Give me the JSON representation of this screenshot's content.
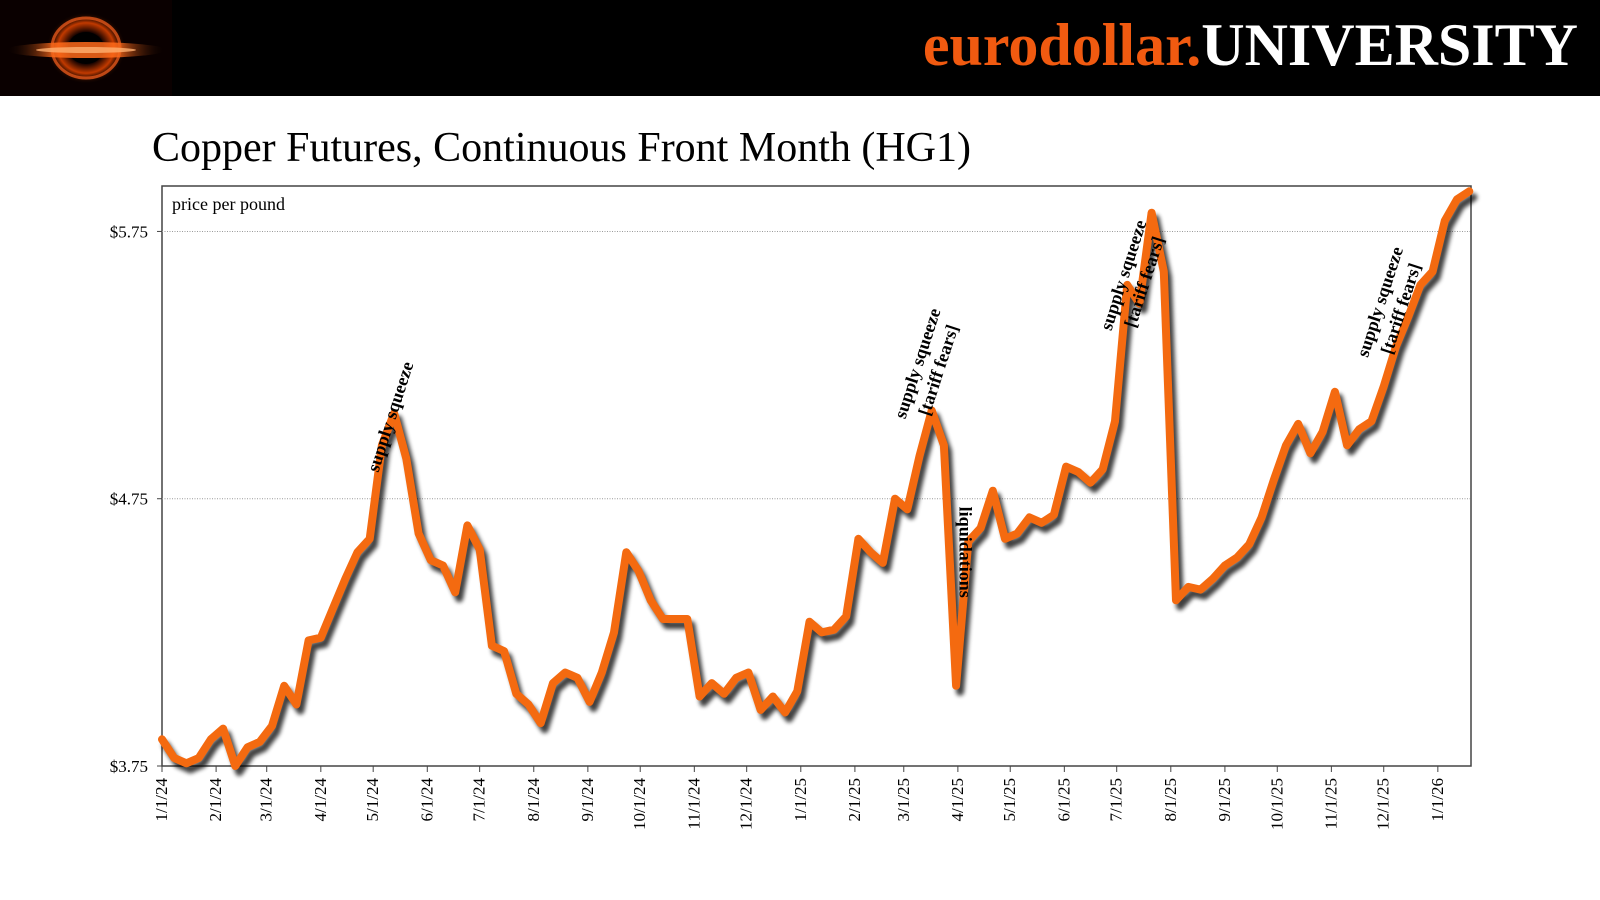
{
  "header": {
    "brand_part1": "eurodollar.",
    "brand_part2": "UNIVERSITY",
    "logo_icon": "eurodollar-university-logo",
    "colors": {
      "background": "#000000",
      "accent": "#f15a10",
      "brand_text": "#ffffff"
    }
  },
  "chart_data": {
    "type": "line",
    "title": "Copper Futures, Continuous Front Month (HG1)",
    "ylabel": "price per pound",
    "xlabel": "",
    "ylim": [
      3.75,
      5.92
    ],
    "yticks": [
      3.75,
      4.75,
      5.75
    ],
    "ytick_labels": [
      "$3.75",
      "$4.75",
      "$5.75"
    ],
    "xlim": [
      "2024-01-01",
      "2026-01-20"
    ],
    "xticks": [
      "2024-01-01",
      "2024-02-01",
      "2024-03-01",
      "2024-04-01",
      "2024-05-01",
      "2024-06-01",
      "2024-07-01",
      "2024-08-01",
      "2024-09-01",
      "2024-10-01",
      "2024-11-01",
      "2024-12-01",
      "2025-01-01",
      "2025-02-01",
      "2025-03-01",
      "2025-04-01",
      "2025-05-01",
      "2025-06-01",
      "2025-07-01",
      "2025-08-01",
      "2025-09-01",
      "2025-10-01",
      "2025-11-01",
      "2025-12-01",
      "2026-01-01"
    ],
    "xtick_labels": [
      "1/1/24",
      "2/1/24",
      "3/1/24",
      "4/1/24",
      "5/1/24",
      "6/1/24",
      "7/1/24",
      "8/1/24",
      "9/1/24",
      "10/1/24",
      "11/1/24",
      "12/1/24",
      "1/1/25",
      "2/1/25",
      "3/1/25",
      "4/1/25",
      "5/1/25",
      "6/1/25",
      "7/1/25",
      "8/1/25",
      "9/1/25",
      "10/1/25",
      "11/1/25",
      "12/1/25",
      "1/1/26"
    ],
    "grid": {
      "horizontal": true,
      "vertical": false
    },
    "line_color": "#f46a10",
    "series": [
      {
        "x": [
          "2024-01-01",
          "2024-01-08",
          "2024-01-15",
          "2024-01-22",
          "2024-01-29",
          "2024-02-05",
          "2024-02-12",
          "2024-02-19",
          "2024-02-26",
          "2024-03-04",
          "2024-03-11",
          "2024-03-18",
          "2024-03-25",
          "2024-04-01",
          "2024-04-08",
          "2024-04-15",
          "2024-04-22",
          "2024-04-29",
          "2024-05-06",
          "2024-05-13",
          "2024-05-20",
          "2024-05-27",
          "2024-06-03",
          "2024-06-10",
          "2024-06-17",
          "2024-06-24",
          "2024-07-01",
          "2024-07-08",
          "2024-07-15",
          "2024-07-22",
          "2024-07-29",
          "2024-08-05",
          "2024-08-12",
          "2024-08-19",
          "2024-08-26",
          "2024-09-02",
          "2024-09-09",
          "2024-09-16",
          "2024-09-23",
          "2024-09-30",
          "2024-10-07",
          "2024-10-14",
          "2024-10-21",
          "2024-10-28",
          "2024-11-04",
          "2024-11-11",
          "2024-11-18",
          "2024-11-25",
          "2024-12-02",
          "2024-12-09",
          "2024-12-16",
          "2024-12-23",
          "2024-12-30",
          "2025-01-06",
          "2025-01-13",
          "2025-01-20",
          "2025-01-27",
          "2025-02-03",
          "2025-02-10",
          "2025-02-17",
          "2025-02-24",
          "2025-03-03",
          "2025-03-10",
          "2025-03-17",
          "2025-03-24",
          "2025-03-31",
          "2025-04-07",
          "2025-04-14",
          "2025-04-21",
          "2025-04-28",
          "2025-05-05",
          "2025-05-12",
          "2025-05-19",
          "2025-05-26",
          "2025-06-02",
          "2025-06-09",
          "2025-06-16",
          "2025-06-23",
          "2025-06-30",
          "2025-07-07",
          "2025-07-14",
          "2025-07-21",
          "2025-07-28",
          "2025-08-04",
          "2025-08-11",
          "2025-08-18",
          "2025-08-25",
          "2025-09-01",
          "2025-09-08",
          "2025-09-15",
          "2025-09-22",
          "2025-09-29",
          "2025-10-06",
          "2025-10-13",
          "2025-10-20",
          "2025-10-27",
          "2025-11-03",
          "2025-11-10",
          "2025-11-17",
          "2025-11-24",
          "2025-12-01",
          "2025-12-08",
          "2025-12-15",
          "2025-12-22",
          "2025-12-29",
          "2026-01-05",
          "2026-01-12",
          "2026-01-19"
        ],
        "y": [
          3.85,
          3.78,
          3.76,
          3.78,
          3.85,
          3.89,
          3.75,
          3.82,
          3.84,
          3.9,
          4.05,
          3.98,
          4.22,
          4.23,
          4.34,
          4.45,
          4.55,
          4.6,
          4.95,
          5.07,
          4.9,
          4.62,
          4.52,
          4.5,
          4.4,
          4.65,
          4.56,
          4.2,
          4.18,
          4.02,
          3.98,
          3.91,
          4.06,
          4.1,
          4.08,
          3.99,
          4.1,
          4.25,
          4.55,
          4.48,
          4.37,
          4.3,
          4.3,
          4.3,
          4.01,
          4.06,
          4.02,
          4.08,
          4.1,
          3.96,
          4.01,
          3.95,
          4.03,
          4.29,
          4.25,
          4.26,
          4.31,
          4.6,
          4.55,
          4.51,
          4.75,
          4.71,
          4.91,
          5.08,
          4.95,
          4.05,
          4.59,
          4.64,
          4.78,
          4.6,
          4.62,
          4.68,
          4.66,
          4.69,
          4.87,
          4.85,
          4.81,
          4.86,
          5.04,
          5.55,
          5.48,
          5.82,
          5.6,
          4.37,
          4.42,
          4.41,
          4.45,
          4.5,
          4.53,
          4.58,
          4.68,
          4.82,
          4.95,
          5.03,
          4.92,
          5.0,
          5.15,
          4.95,
          5.01,
          5.04,
          5.17,
          5.32,
          5.43,
          5.55,
          5.6,
          5.79,
          5.87,
          5.9
        ]
      }
    ],
    "annotations": [
      {
        "text": "supply squeeze",
        "x": "2024-05-14",
        "y": 5.05
      },
      {
        "text": "supply squeeze",
        "x": "2025-03-12",
        "y": 5.25
      },
      {
        "text": "[tariff fears]",
        "x": "2025-03-12",
        "y": 5.25
      },
      {
        "text": "liquidations",
        "x": "2025-04-02",
        "y": 4.55
      },
      {
        "text": "supply squeeze",
        "x": "2025-07-08",
        "y": 5.58
      },
      {
        "text": "[tariff fears]",
        "x": "2025-07-08",
        "y": 5.58
      },
      {
        "text": "supply squeeze",
        "x": "2025-12-02",
        "y": 5.48
      },
      {
        "text": "[tariff fears]",
        "x": "2025-12-02",
        "y": 5.48
      }
    ]
  }
}
